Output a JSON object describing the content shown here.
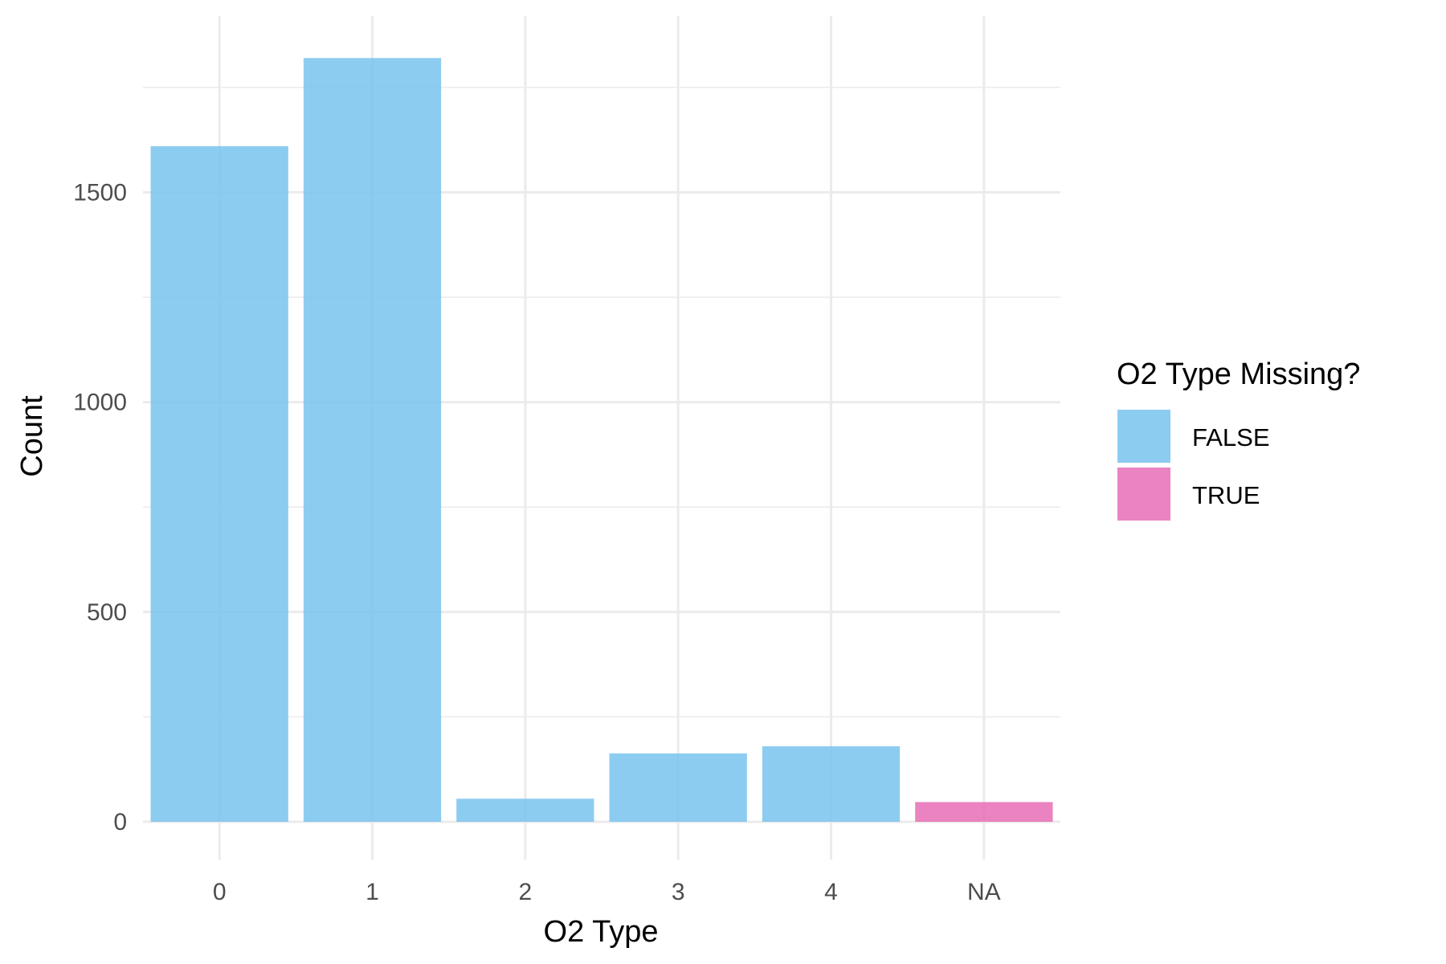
{
  "chart_data": {
    "type": "bar",
    "title": "",
    "xlabel": "O2 Type",
    "ylabel": "Count",
    "categories": [
      "0",
      "1",
      "2",
      "3",
      "4",
      "NA"
    ],
    "values": [
      1610,
      1820,
      55,
      163,
      180,
      47
    ],
    "missing": [
      "FALSE",
      "FALSE",
      "FALSE",
      "FALSE",
      "FALSE",
      "TRUE"
    ],
    "ylim": [
      -90,
      1920
    ],
    "yticks": [
      0,
      500,
      1000,
      1500
    ],
    "yticks_labels": [
      "0",
      "500",
      "1000",
      "1500"
    ],
    "grid": true,
    "legend": {
      "title": "O2 Type Missing?",
      "position": "right",
      "entries": [
        {
          "label": "FALSE",
          "color": "#79C3EE"
        },
        {
          "label": "TRUE",
          "color": "#E66DB5"
        }
      ]
    },
    "colors": {
      "FALSE": "#79C3EE",
      "TRUE": "#E66DB5",
      "grid": "#EBEBEB"
    }
  }
}
